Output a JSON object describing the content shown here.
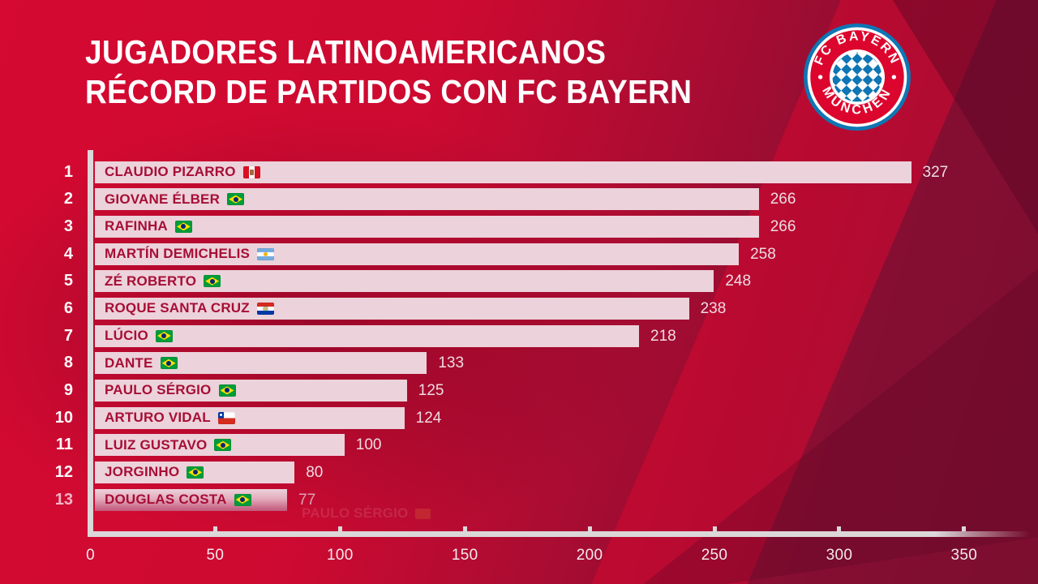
{
  "title": {
    "line1": "JUGADORES LATINOAMERICANOS",
    "line2": "RÉCORD DE PARTIDOS CON FC BAYERN"
  },
  "logo": {
    "top_text": "FC BAYERN",
    "bottom_text": "MÜNCHEN"
  },
  "rows": [
    {
      "rank": "1",
      "name": "CLAUDIO PIZARRO",
      "flag": "pe",
      "value": 327,
      "faded": false
    },
    {
      "rank": "2",
      "name": "GIOVANE ÉLBER",
      "flag": "br",
      "value": 266,
      "faded": false
    },
    {
      "rank": "3",
      "name": "RAFINHA",
      "flag": "br",
      "value": 266,
      "faded": false
    },
    {
      "rank": "4",
      "name": "MARTÍN DEMICHELIS",
      "flag": "ar",
      "value": 258,
      "faded": false
    },
    {
      "rank": "5",
      "name": "ZÉ ROBERTO",
      "flag": "br",
      "value": 248,
      "faded": false
    },
    {
      "rank": "6",
      "name": "ROQUE SANTA CRUZ",
      "flag": "py",
      "value": 238,
      "faded": false
    },
    {
      "rank": "7",
      "name": "LÚCIO",
      "flag": "br",
      "value": 218,
      "faded": false
    },
    {
      "rank": "8",
      "name": "DANTE",
      "flag": "br",
      "value": 133,
      "faded": false
    },
    {
      "rank": "9",
      "name": "PAULO SÉRGIO",
      "flag": "br",
      "value": 125,
      "faded": false
    },
    {
      "rank": "10",
      "name": "ARTURO VIDAL",
      "flag": "cl",
      "value": 124,
      "faded": false
    },
    {
      "rank": "11",
      "name": "LUIZ GUSTAVO",
      "flag": "br",
      "value": 100,
      "faded": false
    },
    {
      "rank": "12",
      "name": "JORGINHO",
      "flag": "br",
      "value": 80,
      "faded": false
    },
    {
      "rank": "13",
      "name": "DOUGLAS COSTA",
      "flag": "br",
      "value": 77,
      "faded": true
    }
  ],
  "chart_data": {
    "type": "bar",
    "orientation": "horizontal",
    "title": "JUGADORES LATINOAMERICANOS RÉCORD DE PARTIDOS CON FC BAYERN",
    "categories": [
      "CLAUDIO PIZARRO",
      "GIOVANE ÉLBER",
      "RAFINHA",
      "MARTÍN DEMICHELIS",
      "ZÉ ROBERTO",
      "ROQUE SANTA CRUZ",
      "LÚCIO",
      "DANTE",
      "PAULO SÉRGIO",
      "ARTURO VIDAL",
      "LUIZ GUSTAVO",
      "JORGINHO",
      "DOUGLAS COSTA"
    ],
    "values": [
      327,
      266,
      266,
      258,
      248,
      238,
      218,
      133,
      125,
      124,
      100,
      80,
      77
    ],
    "flags": [
      "pe",
      "br",
      "br",
      "ar",
      "br",
      "py",
      "br",
      "br",
      "br",
      "cl",
      "br",
      "br",
      "br"
    ],
    "x_ticks": [
      0,
      50,
      100,
      150,
      200,
      250,
      300,
      350
    ],
    "xlim": [
      0,
      380
    ],
    "grid": false,
    "legend": false,
    "value_labels": true,
    "bar_color": "#ecd2da"
  },
  "ghost": {
    "text": "PAULO SÉRGIO"
  },
  "colors": {
    "background_bright": "#d20931",
    "background_dark": "#7d0e31",
    "bar_fill": "#ecd2da",
    "bar_text": "#a60e36",
    "axis": "#dcd7d9",
    "value_text": "#eedce3",
    "title_text": "#ffffff",
    "bayern_red": "#dc052d",
    "bayern_blue": "#0e76b4"
  }
}
